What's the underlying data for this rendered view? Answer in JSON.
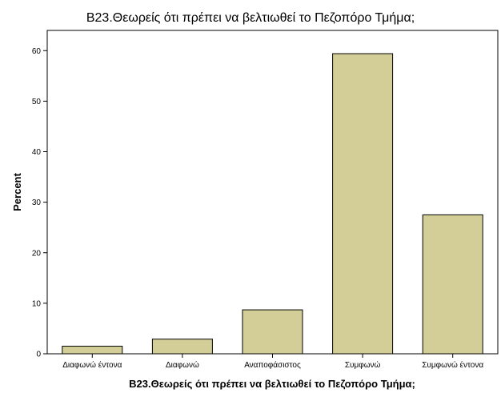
{
  "chart_data": {
    "type": "bar",
    "title": "B23.Θεωρείς ότι πρέπει να βελτιωθεί το Πεζοπόρο Τμήμα;",
    "xlabel": "B23.Θεωρείς ότι πρέπει να βελτιωθεί το Πεζοπόρο Τμήμα;",
    "ylabel": "Percent",
    "categories": [
      "Διαφωνώ έντονα",
      "Διαφωνώ",
      "Αναποφάσιστος",
      "Συμφωνώ",
      "Συμφωνώ έντονα"
    ],
    "values": [
      1.5,
      2.9,
      8.7,
      59.4,
      27.5
    ],
    "ylim": [
      0,
      64
    ],
    "yticks": [
      0,
      10,
      20,
      30,
      40,
      50,
      60
    ],
    "grid": false,
    "legend": "none",
    "colors": {
      "bar_fill": "#d3ce97",
      "bar_stroke": "#000000",
      "axis": "#000000",
      "background": "#ffffff"
    }
  }
}
